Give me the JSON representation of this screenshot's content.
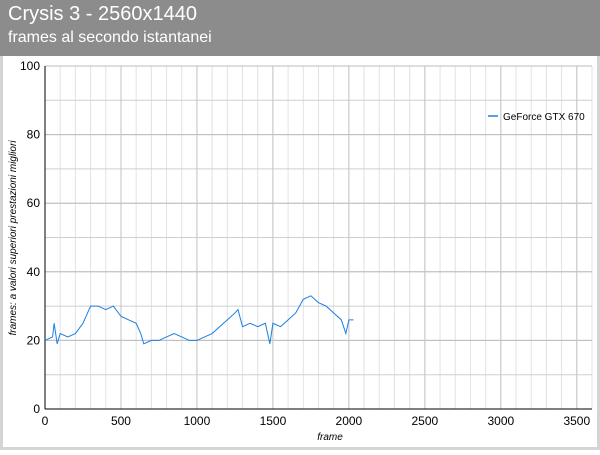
{
  "chart_data": {
    "type": "line",
    "title": "Crysis 3 - 2560x1440",
    "subtitle": "frames al secondo istantanei",
    "x_label": "frame",
    "y_label": "frames: a valori superiori prestazioni migliori",
    "x": [
      0,
      50,
      60,
      80,
      100,
      150,
      200,
      250,
      300,
      350,
      400,
      450,
      500,
      550,
      600,
      630,
      650,
      700,
      750,
      800,
      850,
      900,
      950,
      1000,
      1050,
      1100,
      1150,
      1200,
      1250,
      1270,
      1300,
      1350,
      1400,
      1450,
      1480,
      1500,
      1550,
      1600,
      1650,
      1700,
      1750,
      1800,
      1850,
      1900,
      1950,
      1980,
      2000,
      2030
    ],
    "series": [
      {
        "name": "GeForce GTX 670",
        "color": "#1a7fe0",
        "values": [
          20,
          21,
          25,
          19,
          22,
          21,
          22,
          25,
          30,
          30,
          29,
          30,
          27,
          26,
          25,
          22,
          19,
          20,
          20,
          21,
          22,
          21,
          20,
          20,
          21,
          22,
          24,
          26,
          28,
          29,
          24,
          25,
          24,
          25,
          19,
          25,
          24,
          26,
          28,
          32,
          33,
          31,
          30,
          28,
          26,
          22,
          26,
          26
        ]
      }
    ],
    "xlim": [
      0,
      3600
    ],
    "xticks": [
      0,
      500,
      1000,
      1500,
      2000,
      2500,
      3000,
      3500
    ],
    "ylim": [
      0,
      100
    ],
    "yticks": [
      0,
      20,
      40,
      60,
      80,
      100
    ],
    "grid": true,
    "x_minor_step": 100,
    "y_minor_step": 10,
    "legend": "top-right"
  }
}
